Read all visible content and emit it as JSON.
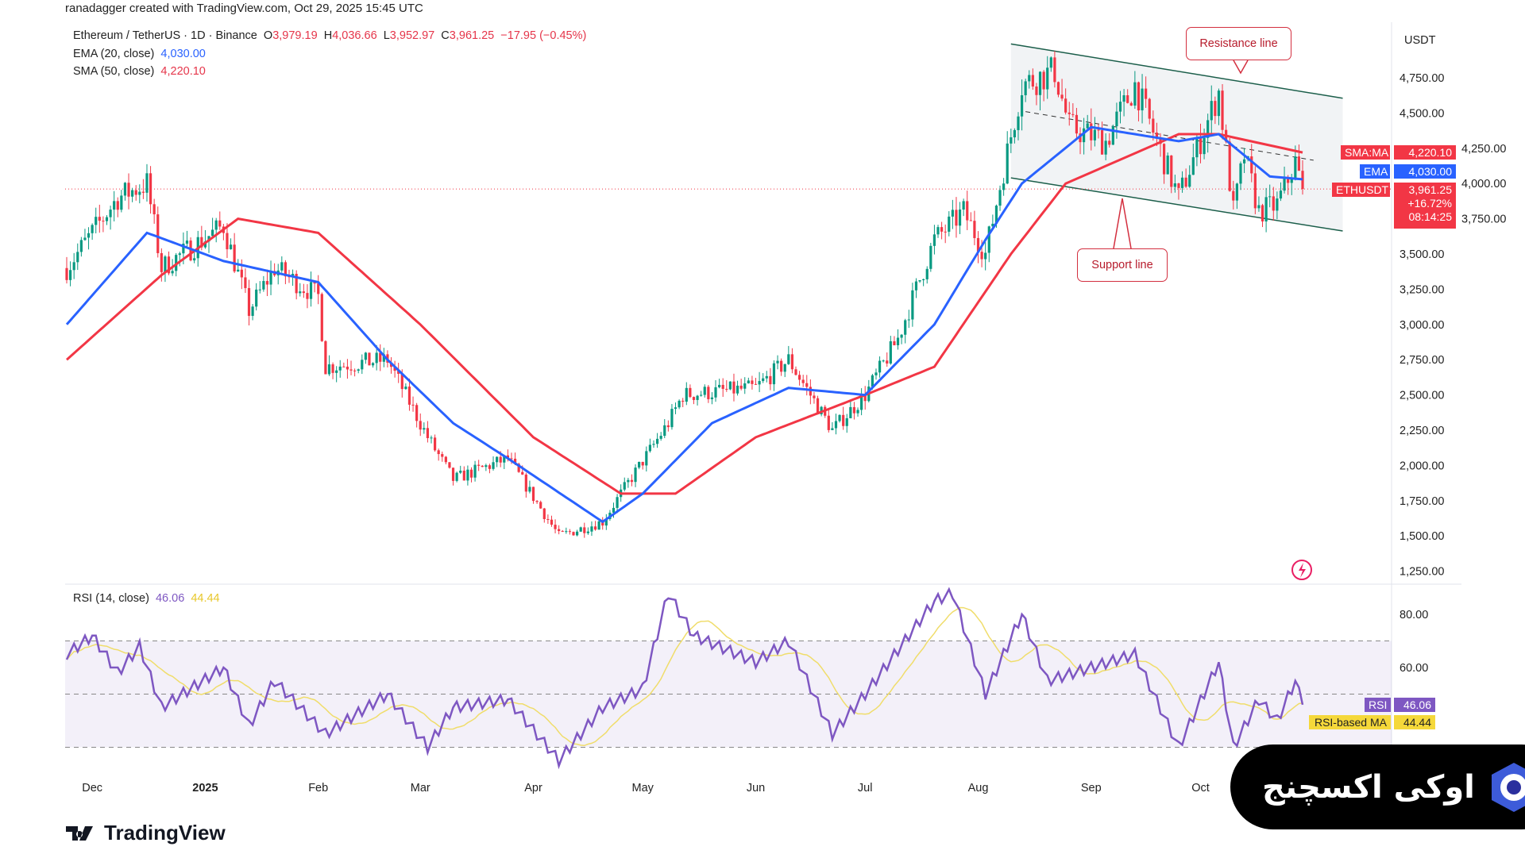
{
  "header": {
    "credit": "ranadagger created with TradingView.com, Oct 29, 2025 15:45 UTC"
  },
  "legend": {
    "symbol": "Ethereum / TetherUS · 1D · Binance",
    "o_label": "O",
    "o": "3,979.19",
    "h_label": "H",
    "h": "4,036.66",
    "l_label": "L",
    "l": "3,952.97",
    "c_label": "C",
    "c": "3,961.25",
    "change": "−17.95 (−0.45%)",
    "ema_label": "EMA (20, close)",
    "ema_value": "4,030.00",
    "sma_label": "SMA (50, close)",
    "sma_value": "4,220.10",
    "rsi_label": "RSI (14, close)",
    "rsi_value": "46.06",
    "rsi_ma_value": "44.44"
  },
  "price_axis": {
    "currency": "USDT",
    "ticks": [
      "4,750.00",
      "4,500.00",
      "4,250.00",
      "4,000.00",
      "3,750.00",
      "3,500.00",
      "3,250.00",
      "3,000.00",
      "2,750.00",
      "2,500.00",
      "2,250.00",
      "2,000.00",
      "1,750.00",
      "1,500.00",
      "1,250.00"
    ],
    "tick_values": [
      4750,
      4500,
      4250,
      4000,
      3750,
      3500,
      3250,
      3000,
      2750,
      2500,
      2250,
      2000,
      1750,
      1500,
      1250
    ]
  },
  "tags": {
    "sma_name": "SMA:MA",
    "sma": "4,220.10",
    "ema_name": "EMA",
    "ema": "4,030.00",
    "sym_name": "ETHUSDT",
    "price": "3,961.25",
    "pct": "+16.72%",
    "countdown": "08:14:25",
    "rsi_name": "RSI",
    "rsi": "46.06",
    "rsima_name": "RSI-based MA",
    "rsima": "44.44"
  },
  "rsi_axis": {
    "ticks": [
      "80.00",
      "60.00"
    ],
    "tick_values": [
      80,
      60
    ]
  },
  "annotations": {
    "resistance": "Resistance line",
    "support": "Support line"
  },
  "brand": {
    "tradingview": "TradingView",
    "banner": "اوکی اکسچنج"
  },
  "colors": {
    "up": "#089981",
    "down": "#f23645",
    "ema": "#2962ff",
    "sma": "#f23645",
    "rsi": "#7e57c2",
    "rsi_ma": "#f0dd6b"
  },
  "chart_data": {
    "type": "candlestick",
    "title": "Ethereum / TetherUS · 1D · Binance",
    "x_ticks": [
      {
        "label": "Dec",
        "date": "2024-12-01"
      },
      {
        "label": "2025",
        "date": "2025-01-01"
      },
      {
        "label": "Feb",
        "date": "2025-02-01"
      },
      {
        "label": "Mar",
        "date": "2025-03-01"
      },
      {
        "label": "Apr",
        "date": "2025-04-01"
      },
      {
        "label": "May",
        "date": "2025-05-01"
      },
      {
        "label": "Jun",
        "date": "2025-06-01"
      },
      {
        "label": "Jul",
        "date": "2025-07-01"
      },
      {
        "label": "Aug",
        "date": "2025-08-01"
      },
      {
        "label": "Sep",
        "date": "2025-09-01"
      },
      {
        "label": "Oct",
        "date": "2025-10-01"
      }
    ],
    "ylim": [
      1150,
      5050
    ],
    "close_anchors": [
      [
        "2024-11-24",
        3400
      ],
      [
        "2024-12-08",
        3900
      ],
      [
        "2024-12-16",
        4000
      ],
      [
        "2024-12-20",
        3400
      ],
      [
        "2025-01-06",
        3700
      ],
      [
        "2025-01-13",
        3100
      ],
      [
        "2025-01-20",
        3400
      ],
      [
        "2025-02-01",
        3200
      ],
      [
        "2025-02-03",
        2700
      ],
      [
        "2025-02-20",
        2750
      ],
      [
        "2025-03-03",
        2200
      ],
      [
        "2025-03-10",
        1900
      ],
      [
        "2025-03-25",
        2050
      ],
      [
        "2025-04-08",
        1500
      ],
      [
        "2025-04-20",
        1600
      ],
      [
        "2025-04-25",
        1800
      ],
      [
        "2025-05-08",
        2300
      ],
      [
        "2025-05-12",
        2500
      ],
      [
        "2025-06-01",
        2550
      ],
      [
        "2025-06-10",
        2750
      ],
      [
        "2025-06-22",
        2250
      ],
      [
        "2025-07-01",
        2500
      ],
      [
        "2025-07-10",
        2900
      ],
      [
        "2025-07-20",
        3600
      ],
      [
        "2025-07-28",
        3800
      ],
      [
        "2025-08-03",
        3500
      ],
      [
        "2025-08-13",
        4700
      ],
      [
        "2025-08-22",
        4800
      ],
      [
        "2025-08-26",
        4400
      ],
      [
        "2025-09-05",
        4300
      ],
      [
        "2025-09-13",
        4700
      ],
      [
        "2025-09-25",
        3900
      ],
      [
        "2025-10-06",
        4650
      ],
      [
        "2025-10-10",
        3800
      ],
      [
        "2025-10-13",
        4200
      ],
      [
        "2025-10-17",
        3800
      ],
      [
        "2025-10-22",
        3850
      ],
      [
        "2025-10-27",
        4150
      ],
      [
        "2025-10-29",
        3961
      ]
    ],
    "ema20_anchors": [
      [
        "2024-11-24",
        3000
      ],
      [
        "2024-12-16",
        3650
      ],
      [
        "2025-01-06",
        3450
      ],
      [
        "2025-02-01",
        3300
      ],
      [
        "2025-02-20",
        2750
      ],
      [
        "2025-03-10",
        2300
      ],
      [
        "2025-03-25",
        2050
      ],
      [
        "2025-04-20",
        1600
      ],
      [
        "2025-05-01",
        1800
      ],
      [
        "2025-05-20",
        2300
      ],
      [
        "2025-06-10",
        2550
      ],
      [
        "2025-07-01",
        2500
      ],
      [
        "2025-07-20",
        3000
      ],
      [
        "2025-08-03",
        3600
      ],
      [
        "2025-08-13",
        4000
      ],
      [
        "2025-09-01",
        4400
      ],
      [
        "2025-09-25",
        4300
      ],
      [
        "2025-10-06",
        4350
      ],
      [
        "2025-10-20",
        4050
      ],
      [
        "2025-10-29",
        4030
      ]
    ],
    "sma50_anchors": [
      [
        "2024-11-24",
        2750
      ],
      [
        "2024-12-20",
        3350
      ],
      [
        "2025-01-10",
        3750
      ],
      [
        "2025-02-01",
        3650
      ],
      [
        "2025-03-01",
        3000
      ],
      [
        "2025-04-01",
        2200
      ],
      [
        "2025-04-25",
        1800
      ],
      [
        "2025-05-10",
        1800
      ],
      [
        "2025-06-01",
        2200
      ],
      [
        "2025-07-01",
        2500
      ],
      [
        "2025-07-20",
        2700
      ],
      [
        "2025-08-10",
        3500
      ],
      [
        "2025-08-25",
        4000
      ],
      [
        "2025-09-25",
        4350
      ],
      [
        "2025-10-06",
        4350
      ],
      [
        "2025-10-29",
        4220
      ]
    ],
    "rsi_anchors": [
      [
        "2024-11-24",
        65
      ],
      [
        "2024-12-01",
        72
      ],
      [
        "2024-12-08",
        58
      ],
      [
        "2024-12-14",
        68
      ],
      [
        "2024-12-20",
        45
      ],
      [
        "2025-01-06",
        60
      ],
      [
        "2025-01-13",
        38
      ],
      [
        "2025-01-20",
        55
      ],
      [
        "2025-02-03",
        35
      ],
      [
        "2025-02-20",
        50
      ],
      [
        "2025-03-03",
        30
      ],
      [
        "2025-03-10",
        45
      ],
      [
        "2025-03-25",
        48
      ],
      [
        "2025-04-08",
        25
      ],
      [
        "2025-04-20",
        45
      ],
      [
        "2025-05-01",
        52
      ],
      [
        "2025-05-08",
        88
      ],
      [
        "2025-05-15",
        72
      ],
      [
        "2025-06-01",
        62
      ],
      [
        "2025-06-10",
        70
      ],
      [
        "2025-06-22",
        35
      ],
      [
        "2025-07-01",
        50
      ],
      [
        "2025-07-20",
        85
      ],
      [
        "2025-07-25",
        88
      ],
      [
        "2025-08-03",
        50
      ],
      [
        "2025-08-13",
        80
      ],
      [
        "2025-08-20",
        55
      ],
      [
        "2025-09-01",
        60
      ],
      [
        "2025-09-13",
        65
      ],
      [
        "2025-09-25",
        30
      ],
      [
        "2025-10-06",
        62
      ],
      [
        "2025-10-10",
        30
      ],
      [
        "2025-10-17",
        48
      ],
      [
        "2025-10-22",
        40
      ],
      [
        "2025-10-27",
        55
      ],
      [
        "2025-10-29",
        46
      ]
    ],
    "rsi_bands": [
      70,
      50,
      30
    ],
    "channel": {
      "resistance": [
        [
          "2025-08-10",
          4990
        ],
        [
          "2025-11-09",
          4605
        ]
      ],
      "support": [
        [
          "2025-08-10",
          4040
        ],
        [
          "2025-11-09",
          3663
        ]
      ],
      "mid": [
        [
          "2025-08-14",
          4510
        ],
        [
          "2025-11-01",
          4165
        ]
      ]
    },
    "last_price": 3961.25
  }
}
